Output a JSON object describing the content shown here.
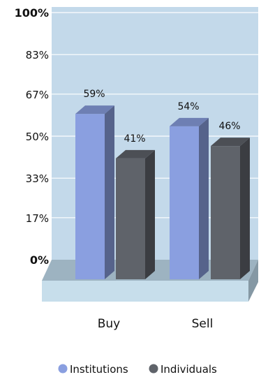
{
  "chart_data": {
    "type": "bar",
    "style": "3d-clustered",
    "categories": [
      "Buy",
      "Sell"
    ],
    "series": [
      {
        "name": "Institutions",
        "values": [
          59,
          54
        ],
        "labels": [
          "59%",
          "54%"
        ],
        "color": "#8a9fe0"
      },
      {
        "name": "Individuals",
        "values": [
          41,
          46
        ],
        "labels": [
          "41%",
          "46%"
        ],
        "color": "#5f636a"
      }
    ],
    "yticks": [
      {
        "value": 100,
        "label": "100%"
      },
      {
        "value": 83,
        "label": "83%"
      },
      {
        "value": 67,
        "label": "67%"
      },
      {
        "value": 50,
        "label": "50%"
      },
      {
        "value": 33,
        "label": "33%"
      },
      {
        "value": 17,
        "label": "17%"
      },
      {
        "value": 0,
        "label": "0%"
      }
    ],
    "ylim": [
      0,
      100
    ],
    "title": "",
    "xlabel": "",
    "ylabel": "",
    "grid": true,
    "legend": "bottom",
    "colors": {
      "plot_background": "#c3d9ea",
      "gridline": "#ffffff",
      "floor_top": "#9db3c1",
      "floor_front": "#c7deeb"
    }
  }
}
